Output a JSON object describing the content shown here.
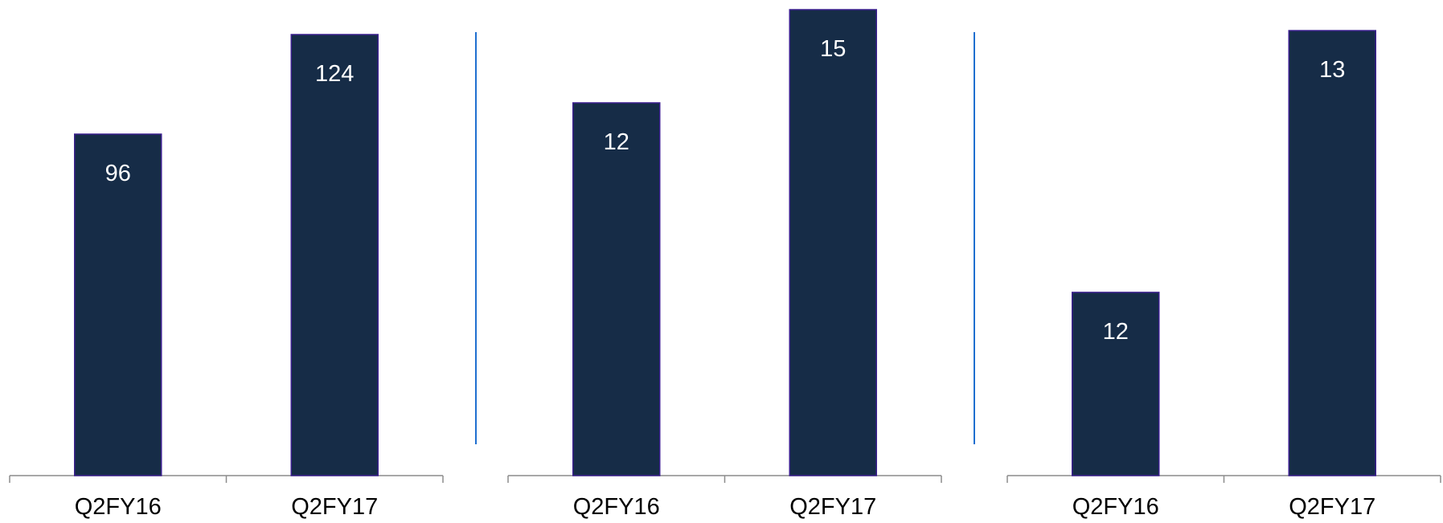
{
  "colors": {
    "bar_fill": "#162c47",
    "bar_stroke": "#3b1f8f",
    "axis": "#8c8c8c",
    "divider": "#1f6fd0",
    "value_label": "#ffffff",
    "category_label": "#000000"
  },
  "chart_data": [
    {
      "type": "bar",
      "categories": [
        "Q2FY16",
        "Q2FY17"
      ],
      "values": [
        96,
        124
      ],
      "data_labels": [
        "96",
        "124"
      ],
      "ylim": [
        0,
        131
      ]
    },
    {
      "type": "bar",
      "categories": [
        "Q2FY16",
        "Q2FY17"
      ],
      "values": [
        12,
        15
      ],
      "data_labels": [
        "12",
        "15"
      ],
      "ylim": [
        0,
        15
      ]
    },
    {
      "type": "bar",
      "categories": [
        "Q2FY16",
        "Q2FY17"
      ],
      "values": [
        12,
        13
      ],
      "data_labels": [
        "12",
        "13"
      ],
      "ylim": [
        11.3,
        13.08
      ]
    }
  ]
}
